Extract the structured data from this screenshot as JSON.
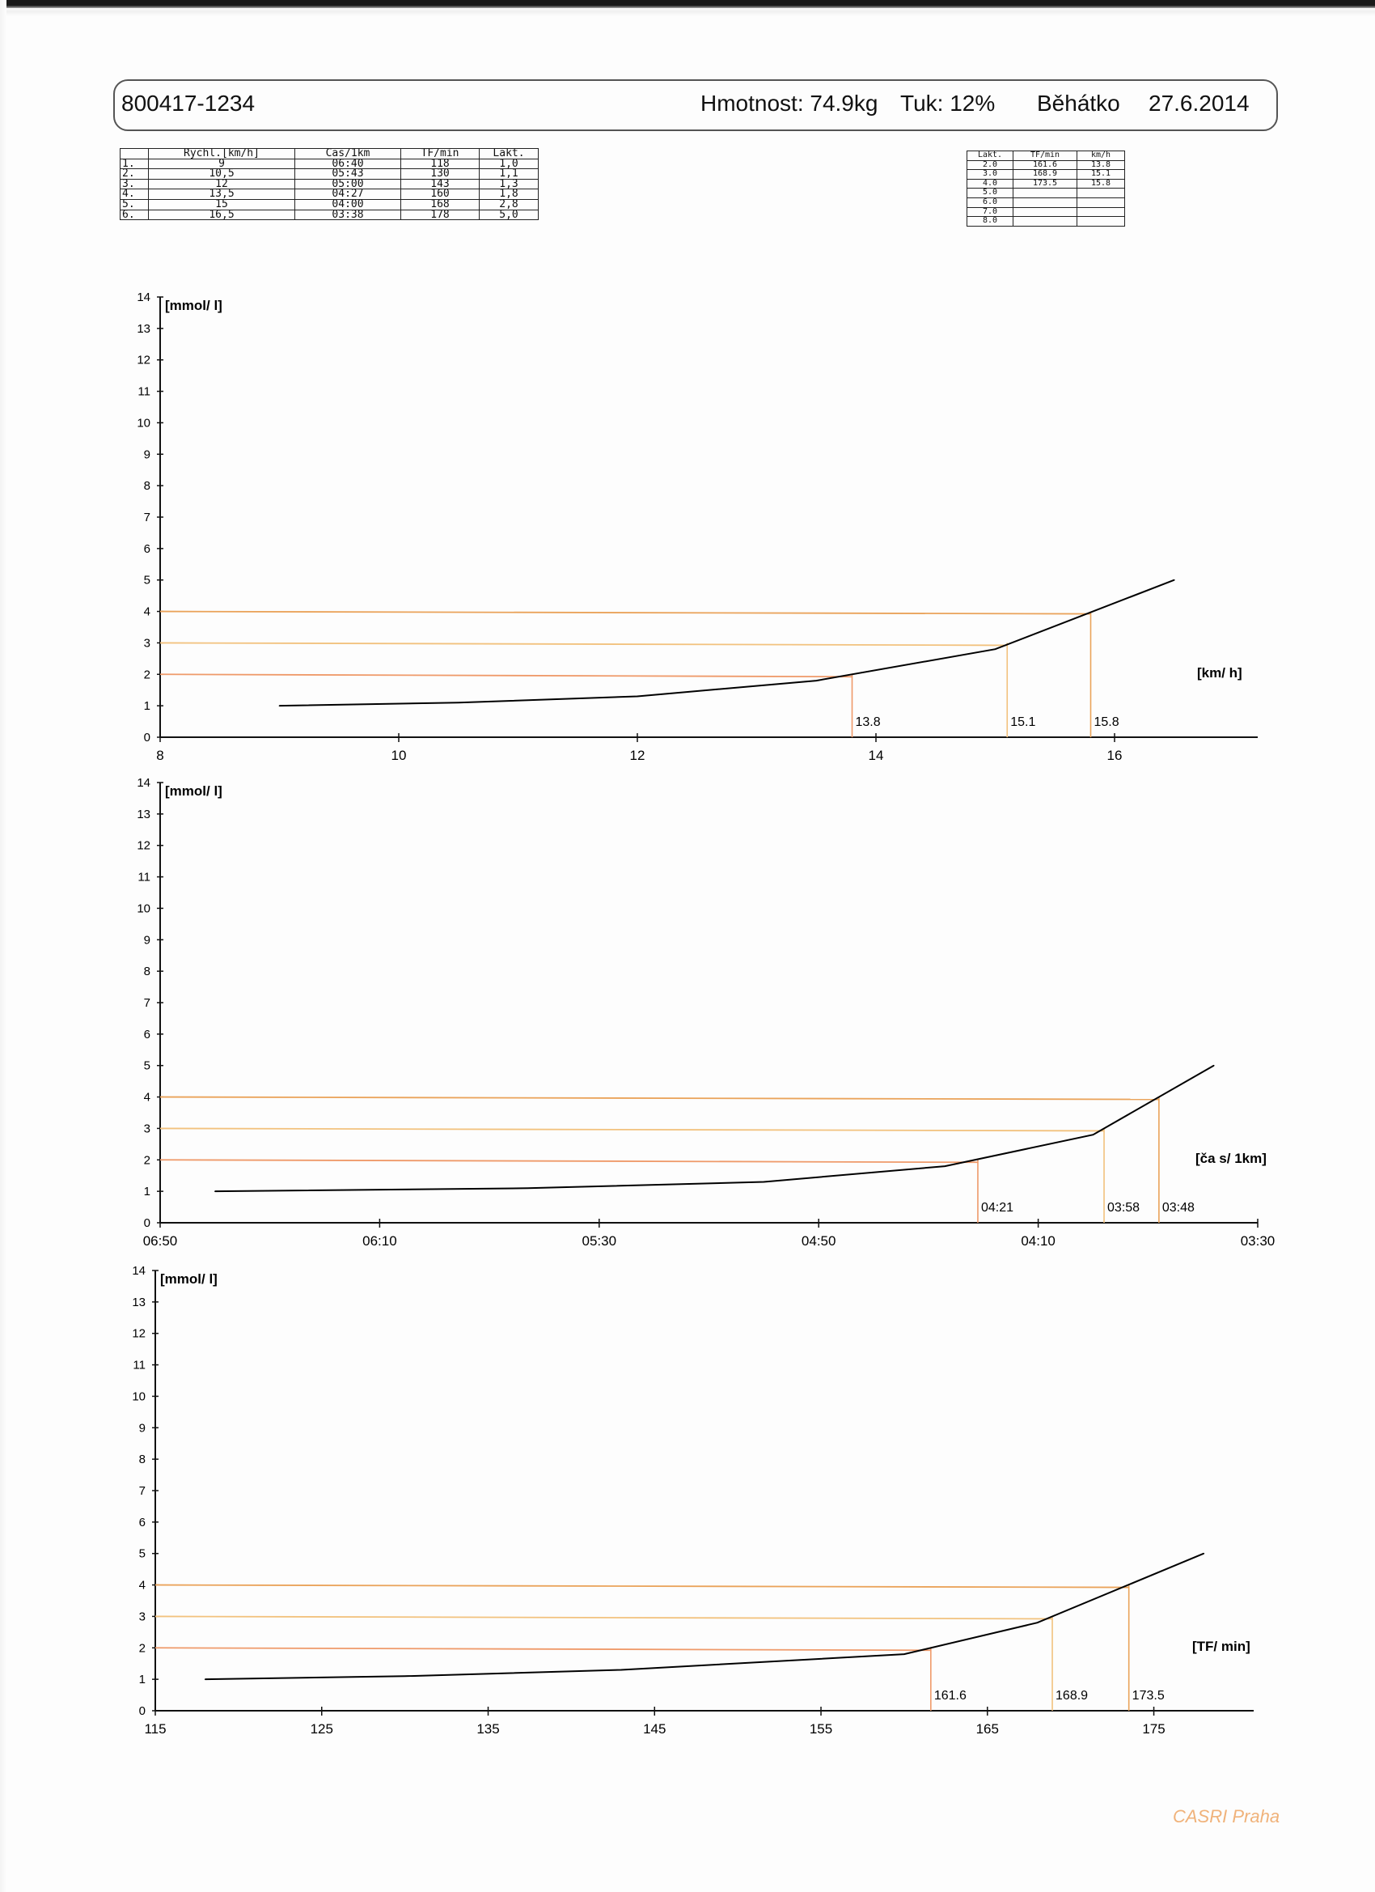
{
  "header": {
    "id": "800417-1234",
    "weight": "Hmotnost: 74.9kg",
    "fat": "Tuk: 12%",
    "device": "Běhátko",
    "date": "27.6.2014"
  },
  "tests_table": {
    "columns": [
      "",
      "Rychl.[km/h]",
      "Čas/1km",
      "TF/min",
      "Lakt."
    ],
    "rows": [
      [
        "1.",
        "9",
        "06:40",
        "118",
        "1,0"
      ],
      [
        "2.",
        "10,5",
        "05:43",
        "130",
        "1,1"
      ],
      [
        "3.",
        "12",
        "05:00",
        "143",
        "1,3"
      ],
      [
        "4.",
        "13,5",
        "04:27",
        "160",
        "1,8"
      ],
      [
        "5.",
        "15",
        "04:00",
        "168",
        "2,8"
      ],
      [
        "6.",
        "16,5",
        "03:38",
        "178",
        "5,0"
      ]
    ]
  },
  "threshold_table": {
    "columns": [
      "Lakt.",
      "TF/min",
      "km/h"
    ],
    "rows": [
      [
        "2.0",
        "161.6",
        "13.8"
      ],
      [
        "3.0",
        "168.9",
        "15.1"
      ],
      [
        "4.0",
        "173.5",
        "15.8"
      ],
      [
        "5.0",
        "",
        ""
      ],
      [
        "6.0",
        "",
        ""
      ],
      [
        "7.0",
        "",
        ""
      ],
      [
        "8.0",
        "",
        ""
      ]
    ]
  },
  "colors": {
    "curve": "#000000",
    "threshold_2": "#ef9a6a",
    "threshold_3": "#f2c27e",
    "threshold_4": "#eaa35a",
    "brand": "#f0b27a"
  },
  "footer": {
    "brand": "CASRI Praha"
  },
  "chart_data": [
    {
      "type": "line",
      "title": "",
      "ylabel": "[mmol/ l]",
      "xlabel": "[km/ h]",
      "xlim": [
        8,
        17.2
      ],
      "ylim": [
        0,
        14
      ],
      "x_ticks": [
        "8",
        "10",
        "12",
        "14",
        "16"
      ],
      "x_tick_values": [
        8,
        10,
        12,
        14,
        16
      ],
      "y_ticks": [
        "0",
        "1",
        "2",
        "3",
        "4",
        "5",
        "6",
        "7",
        "8",
        "9",
        "10",
        "11",
        "12",
        "13",
        "14"
      ],
      "series": [
        {
          "x": [
            9,
            10.5,
            12,
            13.5,
            15,
            16.5
          ],
          "y": [
            1.0,
            1.1,
            1.3,
            1.8,
            2.8,
            5.0
          ]
        }
      ],
      "thresholds": [
        {
          "y": 2,
          "x": 13.8,
          "label": "13.8"
        },
        {
          "y": 3,
          "x": 15.1,
          "label": "15.1"
        },
        {
          "y": 4,
          "x": 15.8,
          "label": "15.8"
        }
      ],
      "grid": false
    },
    {
      "type": "line",
      "title": "",
      "ylabel": "[mmol/ l]",
      "xlabel": "[ča s/ 1km]",
      "xlim": [
        410,
        210
      ],
      "x_is_pace": true,
      "ylim": [
        0,
        14
      ],
      "x_ticks": [
        "06:50",
        "06:10",
        "05:30",
        "04:50",
        "04:10",
        "03:30"
      ],
      "x_tick_values": [
        410,
        370,
        330,
        290,
        250,
        210
      ],
      "y_ticks": [
        "0",
        "1",
        "2",
        "3",
        "4",
        "5",
        "6",
        "7",
        "8",
        "9",
        "10",
        "11",
        "12",
        "13",
        "14"
      ],
      "series": [
        {
          "x": [
            "06:40",
            "05:43",
            "05:00",
            "04:27",
            "04:00",
            "03:38"
          ],
          "y": [
            1.0,
            1.1,
            1.3,
            1.8,
            2.8,
            5.0
          ]
        }
      ],
      "thresholds": [
        {
          "y": 2,
          "x": "04:21",
          "label": "04:21"
        },
        {
          "y": 3,
          "x": "03:58",
          "label": "03:58"
        },
        {
          "y": 4,
          "x": "03:48",
          "label": "03:48"
        }
      ],
      "grid": false
    },
    {
      "type": "line",
      "title": "",
      "ylabel": "[mmol/ l]",
      "xlabel": "[TF/ min]",
      "xlim": [
        115,
        181
      ],
      "ylim": [
        0,
        14
      ],
      "x_ticks": [
        "115",
        "125",
        "135",
        "145",
        "155",
        "165",
        "175"
      ],
      "x_tick_values": [
        115,
        125,
        135,
        145,
        155,
        165,
        175
      ],
      "y_ticks": [
        "0",
        "1",
        "2",
        "3",
        "4",
        "5",
        "6",
        "7",
        "8",
        "9",
        "10",
        "11",
        "12",
        "13",
        "14"
      ],
      "series": [
        {
          "x": [
            118,
            130,
            143,
            160,
            168,
            178
          ],
          "y": [
            1.0,
            1.1,
            1.3,
            1.8,
            2.8,
            5.0
          ]
        }
      ],
      "thresholds": [
        {
          "y": 2,
          "x": 161.6,
          "label": "161.6"
        },
        {
          "y": 3,
          "x": 168.9,
          "label": "168.9"
        },
        {
          "y": 4,
          "x": 173.5,
          "label": "173.5"
        }
      ],
      "grid": false
    }
  ]
}
